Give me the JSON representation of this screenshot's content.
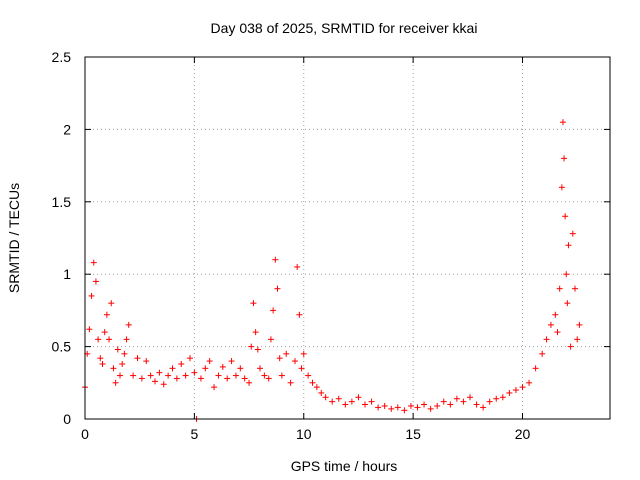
{
  "chart_data": {
    "type": "scatter",
    "title": "Day 038 of 2025, SRMTID for receiver kkai",
    "xlabel": "GPS time / hours",
    "ylabel": "SRMTID / TECUs",
    "xlim": [
      0,
      24
    ],
    "ylim": [
      0,
      2.5
    ],
    "x_ticks": [
      0,
      5,
      10,
      15,
      20
    ],
    "x_tick_labels": [
      "0",
      "5",
      "10",
      "15",
      "20"
    ],
    "y_ticks": [
      0,
      0.5,
      1,
      1.5,
      2,
      2.5
    ],
    "y_tick_labels": [
      "0",
      "0.5",
      "1",
      "1.5",
      "2",
      "2.5"
    ],
    "grid": true,
    "marker": "plus",
    "color": "#ff0000",
    "series": [
      {
        "name": "SRMTID",
        "x": [
          0.0,
          0.1,
          0.2,
          0.3,
          0.4,
          0.5,
          0.6,
          0.7,
          0.8,
          0.9,
          1.0,
          1.1,
          1.2,
          1.3,
          1.4,
          1.5,
          1.6,
          1.7,
          1.8,
          1.9,
          2.0,
          2.2,
          2.4,
          2.6,
          2.8,
          3.0,
          3.2,
          3.4,
          3.6,
          3.8,
          4.0,
          4.2,
          4.4,
          4.6,
          4.8,
          5.0,
          5.1,
          5.3,
          5.5,
          5.7,
          5.9,
          6.1,
          6.3,
          6.5,
          6.7,
          6.9,
          7.1,
          7.3,
          7.5,
          7.6,
          7.7,
          7.8,
          7.9,
          8.0,
          8.2,
          8.4,
          8.5,
          8.6,
          8.7,
          8.8,
          8.9,
          9.0,
          9.2,
          9.4,
          9.6,
          9.7,
          9.8,
          9.9,
          10.0,
          10.2,
          10.4,
          10.6,
          10.8,
          11.0,
          11.3,
          11.6,
          11.9,
          12.2,
          12.5,
          12.8,
          13.1,
          13.4,
          13.7,
          14.0,
          14.3,
          14.6,
          14.9,
          15.2,
          15.5,
          15.8,
          16.1,
          16.4,
          16.7,
          17.0,
          17.3,
          17.6,
          17.9,
          18.2,
          18.5,
          18.8,
          19.1,
          19.4,
          19.7,
          20.0,
          20.3,
          20.6,
          20.9,
          21.1,
          21.3,
          21.5,
          21.6,
          21.7,
          21.8,
          21.85,
          21.9,
          21.95,
          22.0,
          22.05,
          22.1,
          22.2,
          22.3,
          22.4,
          22.5,
          22.6
        ],
        "values": [
          0.22,
          0.45,
          0.62,
          0.85,
          1.08,
          0.95,
          0.55,
          0.42,
          0.38,
          0.6,
          0.72,
          0.55,
          0.8,
          0.35,
          0.25,
          0.48,
          0.3,
          0.38,
          0.45,
          0.55,
          0.65,
          0.3,
          0.42,
          0.28,
          0.4,
          0.3,
          0.26,
          0.32,
          0.24,
          0.3,
          0.35,
          0.28,
          0.38,
          0.3,
          0.42,
          0.32,
          0.0,
          0.28,
          0.35,
          0.4,
          0.22,
          0.3,
          0.36,
          0.28,
          0.4,
          0.3,
          0.35,
          0.28,
          0.25,
          0.5,
          0.8,
          0.6,
          0.48,
          0.35,
          0.3,
          0.28,
          0.55,
          0.75,
          1.1,
          0.9,
          0.42,
          0.3,
          0.45,
          0.25,
          0.4,
          1.05,
          0.72,
          0.35,
          0.45,
          0.3,
          0.25,
          0.22,
          0.18,
          0.15,
          0.12,
          0.14,
          0.1,
          0.12,
          0.15,
          0.1,
          0.12,
          0.08,
          0.09,
          0.07,
          0.08,
          0.06,
          0.09,
          0.08,
          0.1,
          0.07,
          0.09,
          0.12,
          0.1,
          0.14,
          0.12,
          0.15,
          0.1,
          0.08,
          0.12,
          0.14,
          0.15,
          0.18,
          0.2,
          0.22,
          0.25,
          0.35,
          0.45,
          0.55,
          0.65,
          0.72,
          0.6,
          0.9,
          1.6,
          2.05,
          1.8,
          1.4,
          1.0,
          0.8,
          1.2,
          0.5,
          1.28,
          0.9,
          0.55,
          0.65
        ]
      }
    ]
  }
}
